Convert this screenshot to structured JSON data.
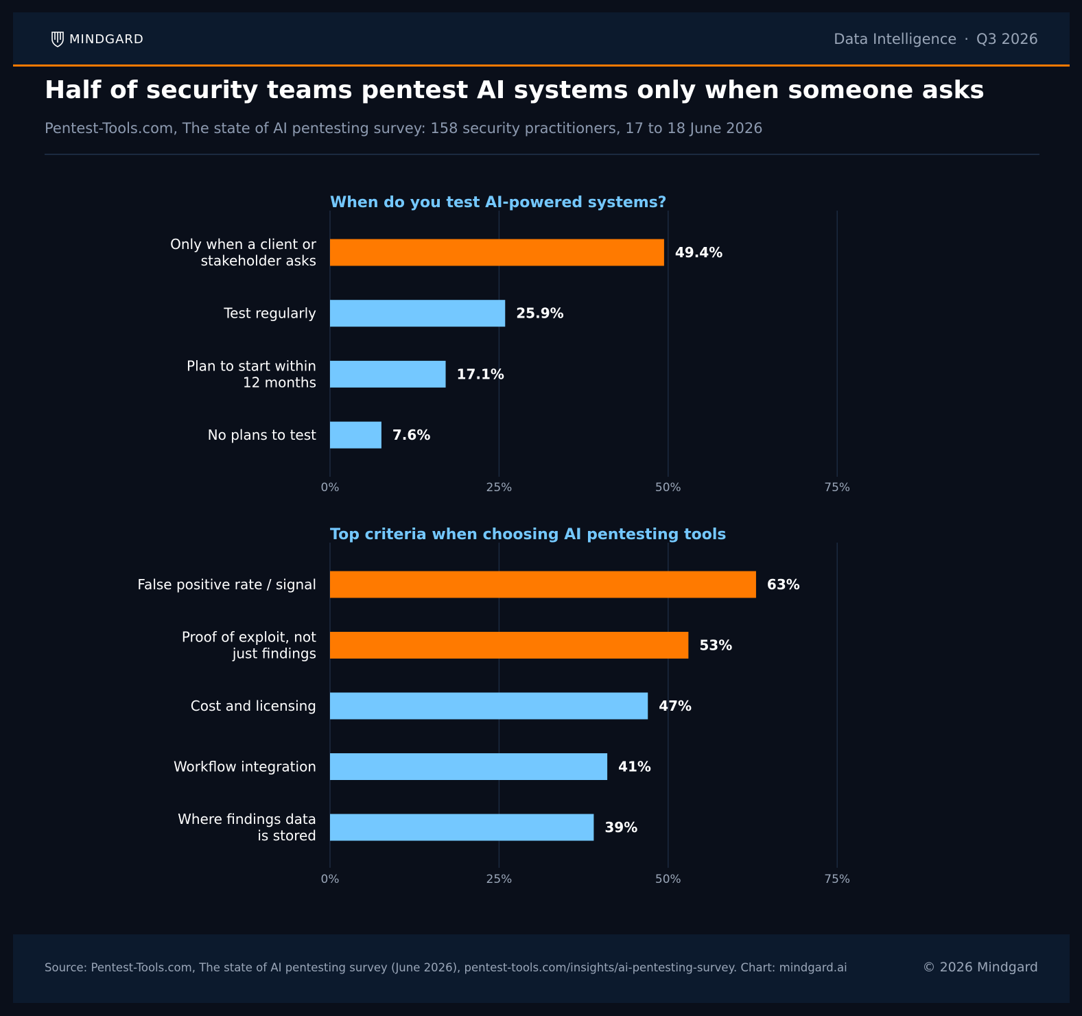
{
  "header": {
    "logo_text": "MINDGARD",
    "section": "Data Intelligence",
    "separator": "·",
    "period": "Q3 2026"
  },
  "title": "Half of security teams pentest AI systems only when someone asks",
  "subtitle": "Pentest-Tools.com, The state of AI pentesting survey: 158 security practitioners, 17 to 18 June 2026",
  "colors": {
    "highlight": "#ff7a00",
    "default_bar": "#74c8ff",
    "panel_title": "#74c8ff"
  },
  "chart_data": [
    {
      "type": "bar",
      "orientation": "horizontal",
      "title": "When do you test AI-powered systems?",
      "categories": [
        [
          "Only when a client or",
          "stakeholder asks"
        ],
        [
          "Test regularly"
        ],
        [
          "Plan to start within",
          "12 months"
        ],
        [
          "No plans to test"
        ]
      ],
      "values": [
        49.4,
        25.9,
        17.1,
        7.6
      ],
      "value_labels": [
        "49.4%",
        "25.9%",
        "17.1%",
        "7.6%"
      ],
      "highlight": [
        true,
        false,
        false,
        false
      ],
      "xlim": [
        0,
        75
      ],
      "xticks": [
        0,
        25,
        50,
        75
      ],
      "xtick_labels": [
        "0%",
        "25%",
        "50%",
        "75%"
      ],
      "grid": true
    },
    {
      "type": "bar",
      "orientation": "horizontal",
      "title": "Top criteria when choosing AI pentesting tools",
      "categories": [
        [
          "False positive rate / signal"
        ],
        [
          "Proof of exploit, not",
          "just findings"
        ],
        [
          "Cost and licensing"
        ],
        [
          "Workflow integration"
        ],
        [
          "Where findings data",
          "is stored"
        ]
      ],
      "values": [
        63,
        53,
        47,
        41,
        39
      ],
      "value_labels": [
        "63%",
        "53%",
        "47%",
        "41%",
        "39%"
      ],
      "highlight": [
        true,
        true,
        false,
        false,
        false
      ],
      "xlim": [
        0,
        75
      ],
      "xticks": [
        0,
        25,
        50,
        75
      ],
      "xtick_labels": [
        "0%",
        "25%",
        "50%",
        "75%"
      ],
      "grid": true
    }
  ],
  "footer": {
    "source": "Source: Pentest-Tools.com, The state of AI pentesting survey (June 2026), pentest-tools.com/insights/ai-pentesting-survey. Chart: mindgard.ai",
    "copyright": "© 2026 Mindgard"
  }
}
